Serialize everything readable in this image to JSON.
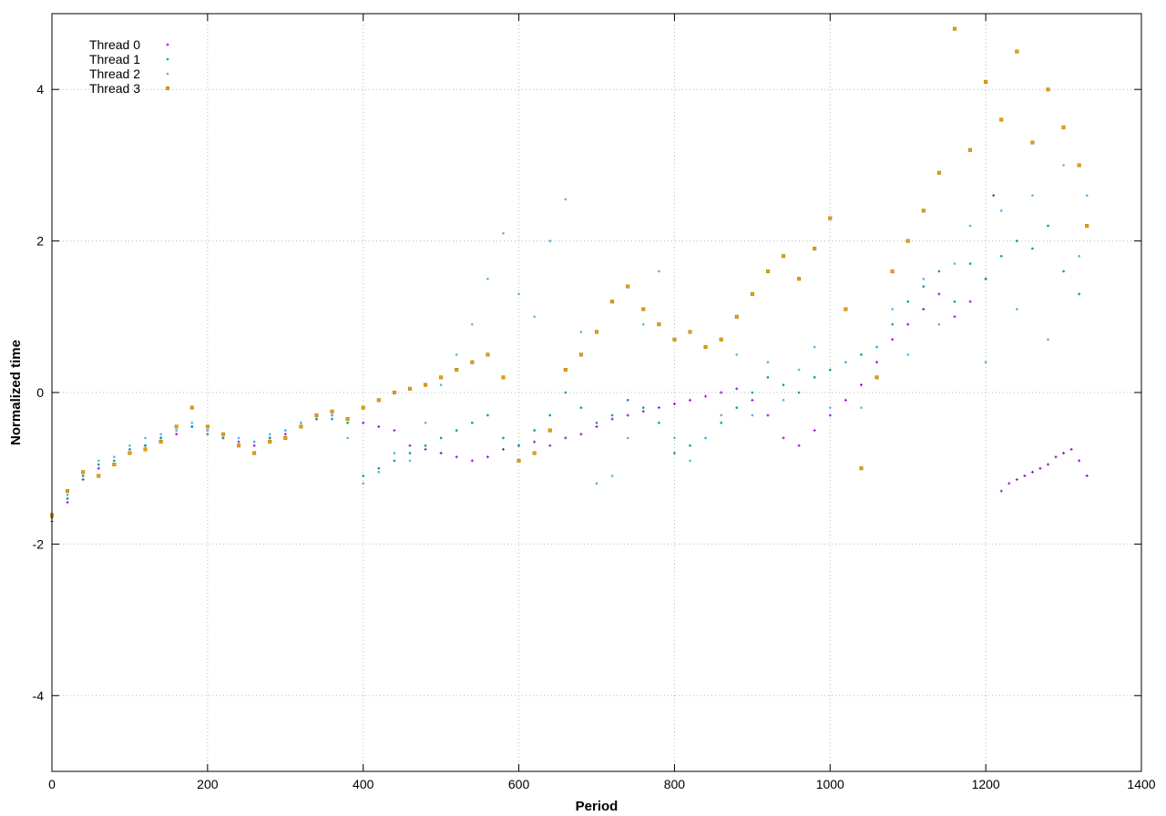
{
  "chart_data": {
    "type": "scatter",
    "title": "",
    "xlabel": "Period",
    "ylabel": "Normalized time",
    "xlim": [
      0,
      1400
    ],
    "ylim": [
      -5,
      5
    ],
    "xticks": [
      0,
      200,
      400,
      600,
      800,
      1000,
      1200,
      1400
    ],
    "yticks": [
      -4,
      -2,
      0,
      2,
      4
    ],
    "grid": true,
    "legend_position": "top-left",
    "series": [
      {
        "name": "Thread 0",
        "color": "#9400d3",
        "marker": "plus",
        "points": [
          [
            0,
            -1.7
          ],
          [
            20,
            -1.45
          ],
          [
            40,
            -1.15
          ],
          [
            60,
            -1.0
          ],
          [
            80,
            -0.95
          ],
          [
            100,
            -0.8
          ],
          [
            120,
            -0.7
          ],
          [
            140,
            -0.6
          ],
          [
            160,
            -0.55
          ],
          [
            180,
            -0.45
          ],
          [
            200,
            -0.5
          ],
          [
            220,
            -0.6
          ],
          [
            240,
            -0.65
          ],
          [
            260,
            -0.7
          ],
          [
            280,
            -0.6
          ],
          [
            300,
            -0.55
          ],
          [
            320,
            -0.45
          ],
          [
            340,
            -0.35
          ],
          [
            360,
            -0.3
          ],
          [
            380,
            -0.35
          ],
          [
            400,
            -0.4
          ],
          [
            420,
            -0.45
          ],
          [
            440,
            -0.5
          ],
          [
            460,
            -0.7
          ],
          [
            480,
            -0.75
          ],
          [
            500,
            -0.8
          ],
          [
            520,
            -0.85
          ],
          [
            540,
            -0.9
          ],
          [
            560,
            -0.85
          ],
          [
            580,
            -0.75
          ],
          [
            600,
            -0.7
          ],
          [
            620,
            -0.65
          ],
          [
            640,
            -0.7
          ],
          [
            660,
            -0.6
          ],
          [
            680,
            -0.55
          ],
          [
            700,
            -0.45
          ],
          [
            720,
            -0.35
          ],
          [
            740,
            -0.3
          ],
          [
            760,
            -0.25
          ],
          [
            780,
            -0.2
          ],
          [
            800,
            -0.15
          ],
          [
            820,
            -0.1
          ],
          [
            840,
            -0.05
          ],
          [
            860,
            0.0
          ],
          [
            880,
            0.05
          ],
          [
            900,
            -0.1
          ],
          [
            920,
            -0.3
          ],
          [
            940,
            -0.6
          ],
          [
            960,
            -0.7
          ],
          [
            980,
            -0.5
          ],
          [
            1000,
            -0.3
          ],
          [
            1020,
            -0.1
          ],
          [
            1040,
            0.1
          ],
          [
            1060,
            0.4
          ],
          [
            1080,
            0.7
          ],
          [
            1100,
            0.9
          ],
          [
            1120,
            1.1
          ],
          [
            1140,
            1.3
          ],
          [
            1160,
            1.0
          ],
          [
            1180,
            1.2
          ],
          [
            1200,
            1.5
          ],
          [
            1210,
            2.6
          ],
          [
            1220,
            -1.3
          ],
          [
            1230,
            -1.2
          ],
          [
            1240,
            -1.15
          ],
          [
            1250,
            -1.1
          ],
          [
            1260,
            -1.05
          ],
          [
            1270,
            -1.0
          ],
          [
            1280,
            -0.95
          ],
          [
            1290,
            -0.85
          ],
          [
            1300,
            -0.8
          ],
          [
            1310,
            -0.75
          ],
          [
            1320,
            -0.9
          ],
          [
            1330,
            -1.1
          ]
        ]
      },
      {
        "name": "Thread 1",
        "color": "#009e9e",
        "marker": "dot",
        "points": [
          [
            0,
            -1.65
          ],
          [
            20,
            -1.4
          ],
          [
            40,
            -1.1
          ],
          [
            60,
            -0.95
          ],
          [
            80,
            -0.9
          ],
          [
            100,
            -0.75
          ],
          [
            120,
            -0.7
          ],
          [
            140,
            -0.6
          ],
          [
            160,
            -0.5
          ],
          [
            180,
            -0.45
          ],
          [
            200,
            -0.55
          ],
          [
            220,
            -0.6
          ],
          [
            240,
            -0.7
          ],
          [
            260,
            -0.65
          ],
          [
            280,
            -0.6
          ],
          [
            300,
            -0.5
          ],
          [
            320,
            -0.4
          ],
          [
            340,
            -0.35
          ],
          [
            360,
            -0.35
          ],
          [
            380,
            -0.4
          ],
          [
            400,
            -1.1
          ],
          [
            420,
            -1.0
          ],
          [
            440,
            -0.9
          ],
          [
            460,
            -0.8
          ],
          [
            480,
            -0.7
          ],
          [
            500,
            -0.6
          ],
          [
            520,
            -0.5
          ],
          [
            540,
            -0.4
          ],
          [
            560,
            -0.3
          ],
          [
            580,
            -0.6
          ],
          [
            600,
            -0.7
          ],
          [
            620,
            -0.5
          ],
          [
            640,
            -0.3
          ],
          [
            660,
            0.0
          ],
          [
            680,
            -0.2
          ],
          [
            700,
            -0.4
          ],
          [
            720,
            -0.3
          ],
          [
            740,
            -0.1
          ],
          [
            760,
            -0.2
          ],
          [
            780,
            -0.4
          ],
          [
            800,
            -0.8
          ],
          [
            820,
            -0.7
          ],
          [
            840,
            -0.6
          ],
          [
            860,
            -0.4
          ],
          [
            880,
            -0.2
          ],
          [
            900,
            0.0
          ],
          [
            920,
            0.2
          ],
          [
            940,
            0.1
          ],
          [
            960,
            0.0
          ],
          [
            980,
            0.2
          ],
          [
            1000,
            0.3
          ],
          [
            1020,
            0.4
          ],
          [
            1040,
            0.5
          ],
          [
            1060,
            0.6
          ],
          [
            1080,
            0.9
          ],
          [
            1100,
            1.2
          ],
          [
            1120,
            1.4
          ],
          [
            1140,
            1.6
          ],
          [
            1160,
            1.2
          ],
          [
            1180,
            1.7
          ],
          [
            1200,
            1.5
          ],
          [
            1220,
            1.8
          ],
          [
            1240,
            2.0
          ],
          [
            1260,
            1.9
          ],
          [
            1280,
            2.2
          ],
          [
            1300,
            1.6
          ],
          [
            1320,
            1.3
          ]
        ]
      },
      {
        "name": "Thread 2",
        "color": "#56b4e9",
        "marker": "dot",
        "points": [
          [
            0,
            -1.6
          ],
          [
            20,
            -1.35
          ],
          [
            40,
            -1.05
          ],
          [
            60,
            -0.9
          ],
          [
            80,
            -0.85
          ],
          [
            100,
            -0.7
          ],
          [
            120,
            -0.6
          ],
          [
            140,
            -0.55
          ],
          [
            160,
            -0.5
          ],
          [
            180,
            -0.4
          ],
          [
            200,
            -0.5
          ],
          [
            220,
            -0.55
          ],
          [
            240,
            -0.6
          ],
          [
            260,
            -0.65
          ],
          [
            280,
            -0.55
          ],
          [
            300,
            -0.5
          ],
          [
            320,
            -0.4
          ],
          [
            340,
            -0.3
          ],
          [
            360,
            -0.3
          ],
          [
            380,
            -0.6
          ],
          [
            400,
            -1.2
          ],
          [
            420,
            -1.05
          ],
          [
            440,
            -0.8
          ],
          [
            460,
            -0.9
          ],
          [
            480,
            -0.4
          ],
          [
            500,
            0.1
          ],
          [
            520,
            0.5
          ],
          [
            540,
            0.9
          ],
          [
            560,
            1.5
          ],
          [
            580,
            2.1
          ],
          [
            600,
            1.3
          ],
          [
            620,
            1.0
          ],
          [
            640,
            2.0
          ],
          [
            660,
            2.55
          ],
          [
            680,
            0.8
          ],
          [
            700,
            -1.2
          ],
          [
            720,
            -1.1
          ],
          [
            740,
            -0.6
          ],
          [
            760,
            0.9
          ],
          [
            780,
            1.6
          ],
          [
            800,
            -0.6
          ],
          [
            820,
            -0.9
          ],
          [
            840,
            -0.6
          ],
          [
            860,
            -0.3
          ],
          [
            880,
            0.5
          ],
          [
            900,
            -0.3
          ],
          [
            920,
            0.4
          ],
          [
            940,
            -0.1
          ],
          [
            960,
            0.3
          ],
          [
            980,
            0.6
          ],
          [
            1000,
            -0.2
          ],
          [
            1020,
            0.4
          ],
          [
            1040,
            -0.2
          ],
          [
            1060,
            0.6
          ],
          [
            1080,
            1.1
          ],
          [
            1100,
            0.5
          ],
          [
            1120,
            1.5
          ],
          [
            1140,
            0.9
          ],
          [
            1160,
            1.7
          ],
          [
            1180,
            2.2
          ],
          [
            1200,
            0.4
          ],
          [
            1220,
            2.4
          ],
          [
            1240,
            1.1
          ],
          [
            1260,
            2.6
          ],
          [
            1280,
            0.7
          ],
          [
            1300,
            3.0
          ],
          [
            1320,
            1.8
          ],
          [
            1330,
            2.6
          ]
        ]
      },
      {
        "name": "Thread 3",
        "color": "#e69f00",
        "marker": "square",
        "points": [
          [
            0,
            -1.62
          ],
          [
            20,
            -1.3
          ],
          [
            40,
            -1.05
          ],
          [
            60,
            -1.1
          ],
          [
            80,
            -0.95
          ],
          [
            100,
            -0.8
          ],
          [
            120,
            -0.75
          ],
          [
            140,
            -0.65
          ],
          [
            160,
            -0.45
          ],
          [
            180,
            -0.2
          ],
          [
            200,
            -0.45
          ],
          [
            220,
            -0.55
          ],
          [
            240,
            -0.7
          ],
          [
            260,
            -0.8
          ],
          [
            280,
            -0.65
          ],
          [
            300,
            -0.6
          ],
          [
            320,
            -0.45
          ],
          [
            340,
            -0.3
          ],
          [
            360,
            -0.25
          ],
          [
            380,
            -0.35
          ],
          [
            400,
            -0.2
          ],
          [
            420,
            -0.1
          ],
          [
            440,
            0.0
          ],
          [
            460,
            0.05
          ],
          [
            480,
            0.1
          ],
          [
            500,
            0.2
          ],
          [
            520,
            0.3
          ],
          [
            540,
            0.4
          ],
          [
            560,
            0.5
          ],
          [
            580,
            0.2
          ],
          [
            600,
            -0.9
          ],
          [
            620,
            -0.8
          ],
          [
            640,
            -0.5
          ],
          [
            660,
            0.3
          ],
          [
            680,
            0.5
          ],
          [
            700,
            0.8
          ],
          [
            720,
            1.2
          ],
          [
            740,
            1.4
          ],
          [
            760,
            1.1
          ],
          [
            780,
            0.9
          ],
          [
            800,
            0.7
          ],
          [
            820,
            0.8
          ],
          [
            840,
            0.6
          ],
          [
            860,
            0.7
          ],
          [
            880,
            1.0
          ],
          [
            900,
            1.3
          ],
          [
            920,
            1.6
          ],
          [
            940,
            1.8
          ],
          [
            960,
            1.5
          ],
          [
            980,
            1.9
          ],
          [
            1000,
            2.3
          ],
          [
            1020,
            1.1
          ],
          [
            1040,
            -1.0
          ],
          [
            1060,
            0.2
          ],
          [
            1080,
            1.6
          ],
          [
            1100,
            2.0
          ],
          [
            1120,
            2.4
          ],
          [
            1140,
            2.9
          ],
          [
            1160,
            4.8
          ],
          [
            1180,
            3.2
          ],
          [
            1200,
            4.1
          ],
          [
            1220,
            3.6
          ],
          [
            1240,
            4.5
          ],
          [
            1260,
            3.3
          ],
          [
            1280,
            4.0
          ],
          [
            1300,
            3.5
          ],
          [
            1320,
            3.0
          ],
          [
            1330,
            2.2
          ]
        ]
      }
    ]
  }
}
